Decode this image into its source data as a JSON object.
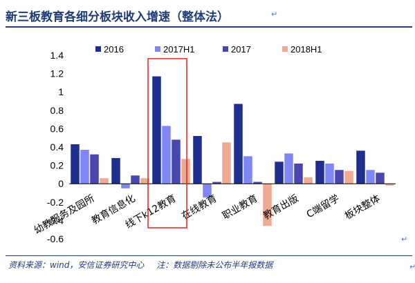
{
  "header": {
    "title": "新三板教育各细分板块收入增速（整体法）"
  },
  "footer": {
    "source": "资料来源：wind，安信证券研究中心",
    "note": "注：数据剔除未公布半年报数据"
  },
  "colors": {
    "accent": "#1f3d7a",
    "highlight_box": "#e8211d"
  },
  "chart_data": {
    "type": "bar",
    "categories": [
      "幼教服务及园所",
      "教育信息化",
      "线下k12教育",
      "在线教育",
      "职业教育",
      "教育出版",
      "C端留学",
      "板块整体"
    ],
    "series": [
      {
        "name": "2016",
        "color": "#1e2f8f",
        "values": [
          0.43,
          0.28,
          1.17,
          0.52,
          0.87,
          0.24,
          0.25,
          0.36
        ]
      },
      {
        "name": "2017H1",
        "color": "#7f86f5",
        "values": [
          0.37,
          -0.05,
          0.63,
          -0.15,
          0.3,
          0.33,
          0.22,
          0.15
        ]
      },
      {
        "name": "2017",
        "color": "#4a46b0",
        "values": [
          0.32,
          0.09,
          0.48,
          0.02,
          0.02,
          0.22,
          0.15,
          0.12
        ]
      },
      {
        "name": "2018H1",
        "color": "#eeab92",
        "values": [
          0.06,
          0.06,
          0.27,
          0.45,
          -0.46,
          0.07,
          0.14,
          -0.02
        ]
      }
    ],
    "ylim": [
      -0.6,
      1.4
    ],
    "yticks": [
      -0.6,
      -0.4,
      -0.2,
      0,
      0.2,
      0.4,
      0.6,
      0.8,
      1,
      1.2,
      1.4
    ],
    "legend_position": "top",
    "grid": false,
    "highlighted_category": "线下k12教育"
  }
}
